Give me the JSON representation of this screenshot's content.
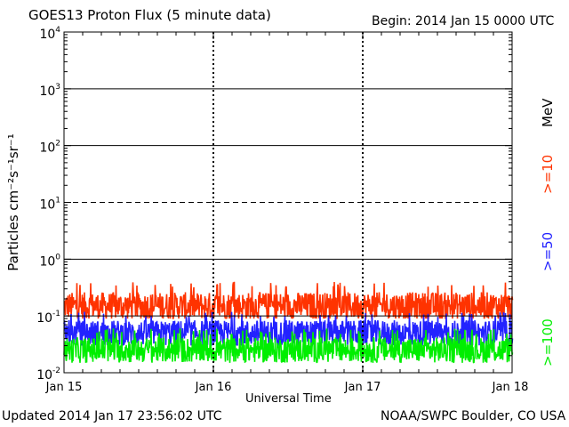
{
  "header": {
    "title": "GOES13 Proton Flux (5 minute data)",
    "begin": "Begin: 2014 Jan 15 0000 UTC"
  },
  "footer": {
    "updated": "Updated 2014 Jan 17 23:56:02 UTC",
    "credit": "NOAA/SWPC Boulder, CO USA"
  },
  "colors": {
    "ge10": "#ff3300",
    "ge50": "#2222ff",
    "ge100": "#00ee00",
    "axis": "#000000",
    "background": "#ffffff"
  },
  "chart_data": {
    "type": "line",
    "title": "GOES13 Proton Flux (5 minute data)",
    "xlabel": "Universal Time",
    "ylabel": "Particles cm⁻²s⁻¹sr⁻¹",
    "x_ticks": [
      "Jan 15",
      "Jan 16",
      "Jan 17",
      "Jan 18"
    ],
    "xlim": [
      "2014-01-15 00:00",
      "2014-01-18 00:00"
    ],
    "y_scale": "log",
    "ylim": [
      0.01,
      10000
    ],
    "y_ticks": [
      0.01,
      0.1,
      1,
      10,
      100,
      1000,
      10000
    ],
    "y_tick_labels": [
      {
        "base": "10",
        "exp": "-2"
      },
      {
        "base": "10",
        "exp": "-1"
      },
      {
        "base": "10",
        "exp": "0"
      },
      {
        "base": "10",
        "exp": "1"
      },
      {
        "base": "10",
        "exp": "2"
      },
      {
        "base": "10",
        "exp": "3"
      },
      {
        "base": "10",
        "exp": "4"
      }
    ],
    "threshold_lines": [
      {
        "value": 10,
        "style": "dashed"
      },
      {
        "value": 0.1,
        "style": "solid"
      }
    ],
    "grid": "solid horizontal lines at 10^0, 10^2, 10^3; dashed at 10^1; dotted vertical day lines",
    "energy_label": "MeV",
    "series": [
      {
        "name": ">=10",
        "color": "#ff3300",
        "mean": 0.15,
        "min": 0.09,
        "max": 0.4
      },
      {
        "name": ">=50",
        "color": "#2222ff",
        "mean": 0.05,
        "min": 0.03,
        "max": 0.12
      },
      {
        "name": ">=100",
        "color": "#00ee00",
        "mean": 0.025,
        "min": 0.015,
        "max": 0.06
      }
    ]
  }
}
